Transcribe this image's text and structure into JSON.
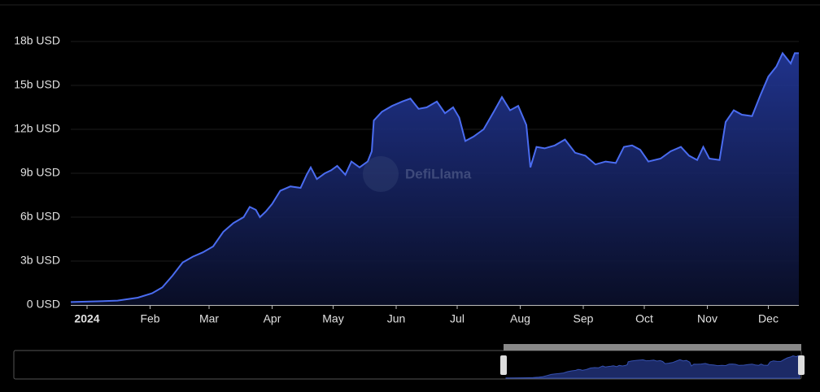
{
  "chart_data": {
    "type": "area",
    "watermark": "DefiLlama",
    "color": "#4a6cf0",
    "x": [
      -8,
      5,
      15,
      25,
      32,
      37,
      42,
      47,
      52,
      57,
      62,
      67,
      72,
      77,
      80,
      83,
      85,
      88,
      91,
      95,
      100,
      105,
      108,
      110,
      113,
      117,
      120,
      123,
      127,
      130,
      134,
      138,
      140,
      141,
      145,
      150,
      155,
      159,
      163,
      167,
      172,
      176,
      180,
      183,
      186,
      190,
      195,
      200,
      204,
      208,
      212,
      216,
      218,
      221,
      225,
      230,
      235,
      240,
      245,
      250,
      255,
      260,
      264,
      268,
      272,
      276,
      282,
      287,
      292,
      296,
      300,
      303,
      306,
      311,
      314,
      318,
      322,
      327,
      331,
      335,
      339,
      342,
      346,
      348,
      350
    ],
    "values": [
      0.2,
      0.25,
      0.3,
      0.5,
      0.8,
      1.2,
      2.0,
      2.9,
      3.3,
      3.6,
      4.0,
      5.0,
      5.6,
      6.0,
      6.7,
      6.5,
      6.0,
      6.4,
      6.9,
      7.8,
      8.1,
      8.0,
      8.9,
      9.4,
      8.6,
      9.0,
      9.2,
      9.5,
      8.9,
      9.8,
      9.4,
      9.8,
      10.5,
      12.6,
      13.2,
      13.6,
      13.9,
      14.1,
      13.4,
      13.5,
      13.9,
      13.1,
      13.5,
      12.8,
      11.2,
      11.5,
      12.0,
      13.2,
      14.2,
      13.3,
      13.6,
      12.3,
      9.4,
      10.8,
      10.7,
      10.9,
      11.3,
      10.4,
      10.2,
      9.6,
      9.8,
      9.7,
      10.8,
      10.9,
      10.6,
      9.8,
      10.0,
      10.5,
      10.8,
      10.2,
      9.9,
      10.8,
      10.0,
      9.9,
      12.5,
      13.3,
      13.0,
      12.9,
      14.3,
      15.6,
      16.3,
      17.2,
      16.5,
      17.2,
      17.2
    ],
    "xlim": [
      -8,
      350
    ],
    "xticks": [
      {
        "value": 0,
        "label": "2024"
      },
      {
        "value": 31,
        "label": "Feb"
      },
      {
        "value": 60,
        "label": "Mar"
      },
      {
        "value": 91,
        "label": "Apr"
      },
      {
        "value": 121,
        "label": "May"
      },
      {
        "value": 152,
        "label": "Jun"
      },
      {
        "value": 182,
        "label": "Jul"
      },
      {
        "value": 213,
        "label": "Aug"
      },
      {
        "value": 244,
        "label": "Sep"
      },
      {
        "value": 274,
        "label": "Oct"
      },
      {
        "value": 305,
        "label": "Nov"
      },
      {
        "value": 335,
        "label": "Dec"
      }
    ],
    "ylim": [
      0,
      18
    ],
    "yticks": [
      {
        "value": 0,
        "label": "0 USD"
      },
      {
        "value": 3,
        "label": "3b USD"
      },
      {
        "value": 6,
        "label": "6b USD"
      },
      {
        "value": 9,
        "label": "9b USD"
      },
      {
        "value": 12,
        "label": "12b USD"
      },
      {
        "value": 15,
        "label": "15b USD"
      },
      {
        "value": 18,
        "label": "18b USD"
      }
    ],
    "grid": true
  }
}
